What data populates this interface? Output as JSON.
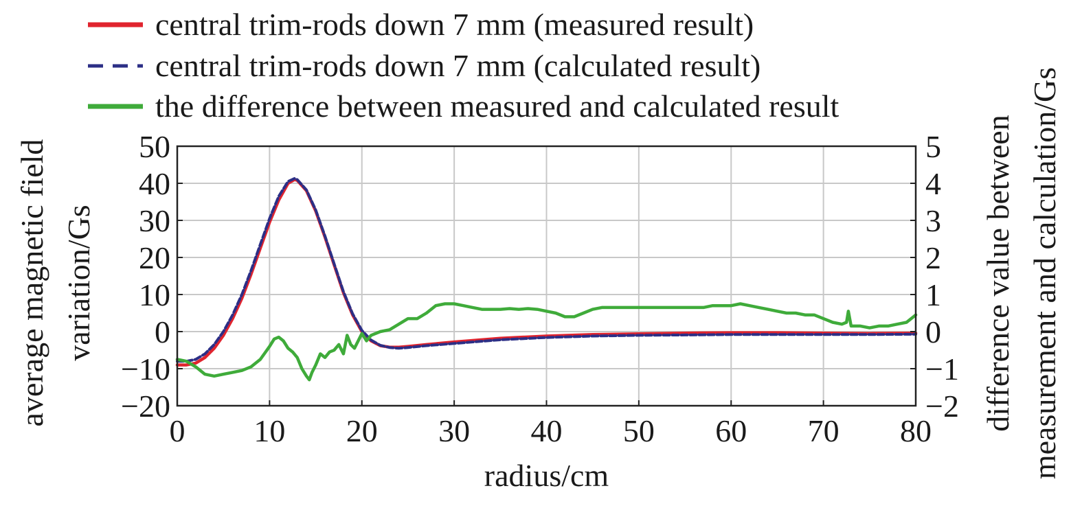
{
  "chart_data": {
    "type": "line",
    "title": "",
    "xlabel": "radius/cm",
    "ylabel_left": [
      "average magnetic field",
      "variation/Gs"
    ],
    "ylabel_right": [
      "difference value between",
      "measurement and calculation/Gs"
    ],
    "xlim": [
      0,
      80
    ],
    "ylim_left": [
      -20,
      50
    ],
    "ylim_right": [
      -2,
      5
    ],
    "x_ticks": [
      "0",
      "10",
      "20",
      "30",
      "40",
      "50",
      "60",
      "70",
      "80"
    ],
    "y_left_ticks": [
      "50",
      "40",
      "30",
      "20",
      "10",
      "0",
      "−10",
      "−20"
    ],
    "y_right_ticks": [
      "5",
      "4",
      "3",
      "2",
      "1",
      "0",
      "−1",
      "−2"
    ],
    "grid": true,
    "legend_position": "top",
    "series": [
      {
        "name": "central trim-rods down 7 mm (measured result)",
        "axis": "left",
        "color": "#e0242e",
        "style": "solid",
        "x": [
          0,
          1,
          2,
          3,
          4,
          5,
          6,
          7,
          8,
          9,
          10,
          11,
          12,
          12.7,
          13,
          14,
          15,
          16,
          17,
          18,
          19,
          20,
          21,
          22,
          23,
          24,
          25,
          27,
          30,
          35,
          40,
          45,
          50,
          55,
          60,
          65,
          70,
          75,
          80
        ],
        "values": [
          -9,
          -9,
          -8.5,
          -7,
          -4.5,
          -1,
          3.5,
          9,
          15.5,
          22.5,
          29.5,
          35.5,
          40,
          41,
          40.8,
          38,
          32.5,
          25.5,
          18,
          10.5,
          4.5,
          0,
          -2.5,
          -3.8,
          -4.2,
          -4.2,
          -4,
          -3.5,
          -2.8,
          -1.8,
          -1.2,
          -0.8,
          -0.6,
          -0.4,
          -0.3,
          -0.3,
          -0.4,
          -0.5,
          -0.4
        ]
      },
      {
        "name": "central trim-rods down 7 mm (calculated result)",
        "axis": "left",
        "color": "#2c2f86",
        "style": "dashed",
        "x": [
          0,
          1,
          2,
          3,
          4,
          5,
          6,
          7,
          8,
          9,
          10,
          11,
          12,
          12.7,
          13,
          14,
          15,
          16,
          17,
          18,
          19,
          20,
          21,
          22,
          23,
          24,
          25,
          27,
          30,
          35,
          40,
          45,
          50,
          55,
          60,
          65,
          70,
          75,
          80
        ],
        "values": [
          -8,
          -8,
          -7.5,
          -6,
          -3.5,
          0,
          4.5,
          10,
          16.5,
          23.5,
          30.5,
          36.5,
          40.5,
          41.3,
          41,
          38.2,
          32.8,
          25.8,
          18.3,
          10.8,
          4.8,
          0.3,
          -2.3,
          -3.7,
          -4.3,
          -4.5,
          -4.3,
          -3.8,
          -3.2,
          -2.2,
          -1.6,
          -1.2,
          -1,
          -0.9,
          -0.8,
          -0.8,
          -0.8,
          -0.8,
          -0.7
        ]
      },
      {
        "name": "the difference between measured and calculated result",
        "axis": "right",
        "color": "#3fab3a",
        "style": "solid",
        "x": [
          0,
          1,
          2,
          3,
          4,
          5,
          6,
          7,
          8,
          9,
          10,
          10.5,
          11,
          11.5,
          12,
          12.5,
          13,
          13.5,
          14,
          14.3,
          14.6,
          15,
          15.5,
          16,
          16.5,
          17,
          17.5,
          18,
          18.4,
          18.8,
          19.2,
          19.6,
          20,
          20.5,
          21,
          22,
          23,
          24,
          25,
          26,
          27,
          28,
          29,
          30,
          31,
          32,
          33,
          34,
          35,
          36,
          37,
          38,
          39,
          40,
          41,
          42,
          43,
          44,
          45,
          46,
          47,
          48,
          49,
          50,
          51,
          52,
          53,
          54,
          55,
          56,
          57,
          58,
          59,
          60,
          61,
          62,
          63,
          64,
          65,
          66,
          67,
          68,
          69,
          70,
          71,
          72,
          72.5,
          72.7,
          73,
          74,
          75,
          76,
          77,
          78,
          79,
          80
        ],
        "values": [
          -0.75,
          -0.8,
          -0.95,
          -1.15,
          -1.2,
          -1.15,
          -1.1,
          -1.05,
          -0.95,
          -0.75,
          -0.4,
          -0.2,
          -0.15,
          -0.25,
          -0.45,
          -0.55,
          -0.7,
          -1.0,
          -1.2,
          -1.3,
          -1.1,
          -0.9,
          -0.6,
          -0.7,
          -0.55,
          -0.5,
          -0.35,
          -0.6,
          -0.1,
          -0.35,
          -0.45,
          -0.25,
          -0.05,
          -0.25,
          -0.1,
          0.0,
          0.05,
          0.2,
          0.35,
          0.35,
          0.5,
          0.7,
          0.75,
          0.75,
          0.7,
          0.65,
          0.6,
          0.6,
          0.6,
          0.62,
          0.6,
          0.62,
          0.6,
          0.55,
          0.5,
          0.4,
          0.4,
          0.5,
          0.6,
          0.65,
          0.65,
          0.65,
          0.65,
          0.65,
          0.65,
          0.65,
          0.65,
          0.65,
          0.65,
          0.65,
          0.65,
          0.7,
          0.7,
          0.7,
          0.75,
          0.7,
          0.65,
          0.6,
          0.55,
          0.5,
          0.5,
          0.45,
          0.45,
          0.35,
          0.25,
          0.2,
          0.25,
          0.55,
          0.15,
          0.15,
          0.1,
          0.15,
          0.15,
          0.2,
          0.25,
          0.45
        ]
      }
    ]
  }
}
